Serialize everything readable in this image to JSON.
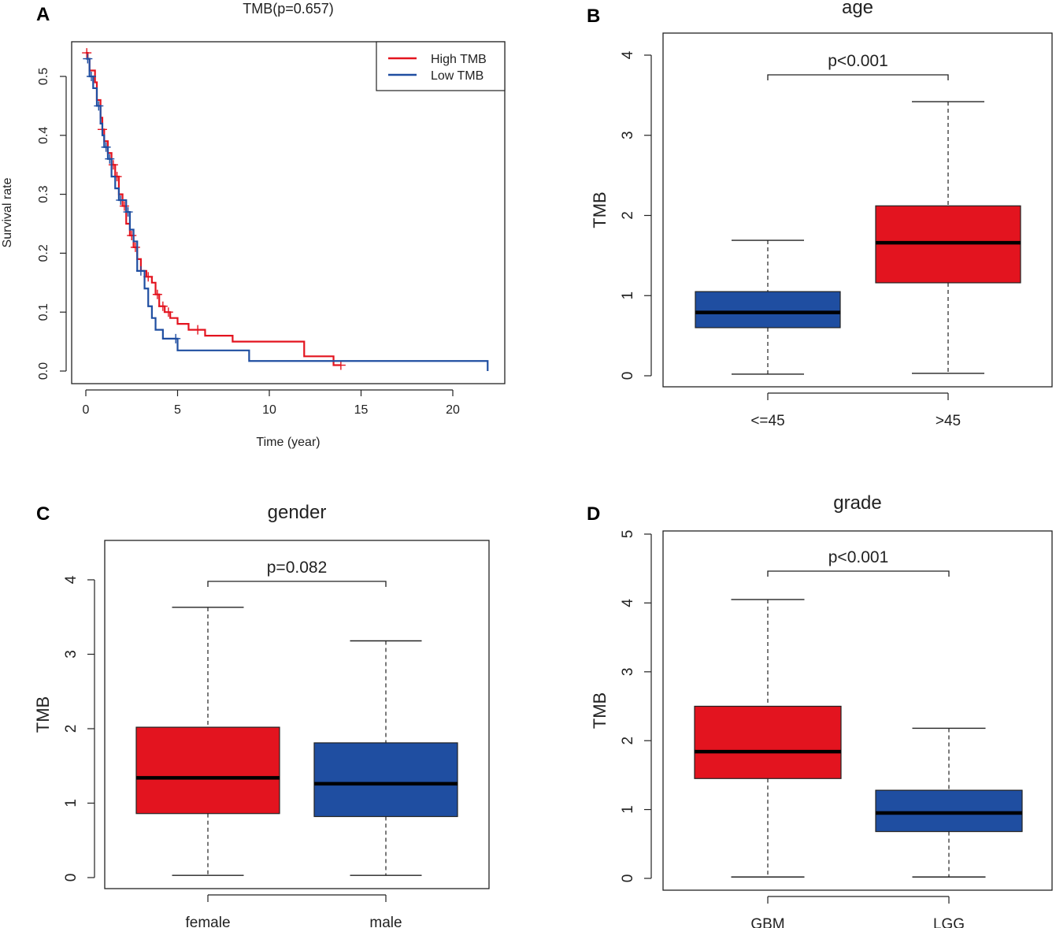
{
  "colors": {
    "high": "#e3141f",
    "low": "#1f4ea1",
    "axis": "#222222"
  },
  "chart_data": [
    {
      "panel": "A",
      "type": "line",
      "subtype": "kaplan-meier",
      "title": "TMB(p=0.657)",
      "xlabel": "Time (year)",
      "ylabel": "Survival rate",
      "xlim": [
        0,
        22
      ],
      "ylim": [
        0,
        0.54
      ],
      "xticks": [
        0,
        5,
        10,
        15,
        20
      ],
      "yticks": [
        "0.0",
        "0.1",
        "0.2",
        "0.3",
        "0.4",
        "0.5"
      ],
      "legend_position": "top-right",
      "series": [
        {
          "name": "High TMB",
          "color_key": "high",
          "steps": [
            [
              0,
              0.54
            ],
            [
              0.1,
              0.53
            ],
            [
              0.2,
              0.51
            ],
            [
              0.5,
              0.49
            ],
            [
              0.6,
              0.46
            ],
            [
              0.8,
              0.43
            ],
            [
              0.9,
              0.41
            ],
            [
              1.0,
              0.39
            ],
            [
              1.2,
              0.37
            ],
            [
              1.4,
              0.35
            ],
            [
              1.6,
              0.33
            ],
            [
              1.8,
              0.3
            ],
            [
              2.0,
              0.28
            ],
            [
              2.2,
              0.25
            ],
            [
              2.4,
              0.23
            ],
            [
              2.6,
              0.21
            ],
            [
              2.8,
              0.19
            ],
            [
              3.0,
              0.17
            ],
            [
              3.3,
              0.16
            ],
            [
              3.6,
              0.15
            ],
            [
              3.8,
              0.13
            ],
            [
              4.0,
              0.11
            ],
            [
              4.3,
              0.1
            ],
            [
              4.6,
              0.09
            ],
            [
              5.0,
              0.08
            ],
            [
              5.6,
              0.07
            ],
            [
              6.5,
              0.06
            ],
            [
              8.0,
              0.05
            ],
            [
              11.9,
              0.025
            ],
            [
              13.5,
              0.01
            ],
            [
              13.9,
              0.01
            ]
          ],
          "censor_times": [
            0.05,
            0.9,
            1.5,
            1.7,
            2.1,
            2.5,
            2.7,
            3.4,
            3.9,
            4.2,
            4.5,
            6.1,
            13.9
          ]
        },
        {
          "name": "Low TMB",
          "color_key": "low",
          "steps": [
            [
              0,
              0.53
            ],
            [
              0.2,
              0.5
            ],
            [
              0.4,
              0.48
            ],
            [
              0.6,
              0.45
            ],
            [
              0.8,
              0.42
            ],
            [
              0.9,
              0.4
            ],
            [
              1.0,
              0.38
            ],
            [
              1.2,
              0.36
            ],
            [
              1.4,
              0.33
            ],
            [
              1.6,
              0.31
            ],
            [
              1.8,
              0.29
            ],
            [
              2.2,
              0.27
            ],
            [
              2.4,
              0.24
            ],
            [
              2.6,
              0.22
            ],
            [
              2.8,
              0.17
            ],
            [
              3.2,
              0.14
            ],
            [
              3.4,
              0.11
            ],
            [
              3.6,
              0.09
            ],
            [
              3.8,
              0.07
            ],
            [
              4.2,
              0.055
            ],
            [
              5.0,
              0.035
            ],
            [
              8.9,
              0.017
            ],
            [
              21.9,
              0.017
            ],
            [
              21.9,
              0.0
            ]
          ],
          "censor_times": [
            0.1,
            0.3,
            0.7,
            1.1,
            1.3,
            1.9,
            2.3,
            3.0,
            4.9
          ]
        }
      ]
    },
    {
      "panel": "B",
      "type": "box",
      "title": "age",
      "ylabel": "TMB",
      "ylim": [
        0,
        4
      ],
      "yticks": [
        0,
        1,
        2,
        3,
        4
      ],
      "pvalue": "p<0.001",
      "groups": [
        {
          "label": "<=45",
          "color_key": "low",
          "min": 0.02,
          "q1": 0.6,
          "median": 0.79,
          "q3": 1.05,
          "max": 1.69
        },
        {
          "label": ">45",
          "color_key": "high",
          "min": 0.03,
          "q1": 1.16,
          "median": 1.66,
          "q3": 2.12,
          "max": 3.42
        }
      ]
    },
    {
      "panel": "C",
      "type": "box",
      "title": "gender",
      "ylabel": "TMB",
      "ylim": [
        0,
        4
      ],
      "yticks": [
        0,
        1,
        2,
        3,
        4
      ],
      "pvalue": "p=0.082",
      "groups": [
        {
          "label": "female",
          "color_key": "high",
          "min": 0.03,
          "q1": 0.86,
          "median": 1.34,
          "q3": 2.02,
          "max": 3.63
        },
        {
          "label": "male",
          "color_key": "low",
          "min": 0.03,
          "q1": 0.82,
          "median": 1.26,
          "q3": 1.81,
          "max": 3.18
        }
      ]
    },
    {
      "panel": "D",
      "type": "box",
      "title": "grade",
      "ylabel": "TMB",
      "ylim": [
        0,
        5
      ],
      "yticks": [
        0,
        1,
        2,
        3,
        4,
        5
      ],
      "pvalue": "p<0.001",
      "groups": [
        {
          "label": "GBM",
          "color_key": "high",
          "min": 0.02,
          "q1": 1.45,
          "median": 1.84,
          "q3": 2.5,
          "max": 4.05
        },
        {
          "label": "LGG",
          "color_key": "low",
          "min": 0.02,
          "q1": 0.68,
          "median": 0.95,
          "q3": 1.28,
          "max": 2.18
        }
      ]
    }
  ]
}
